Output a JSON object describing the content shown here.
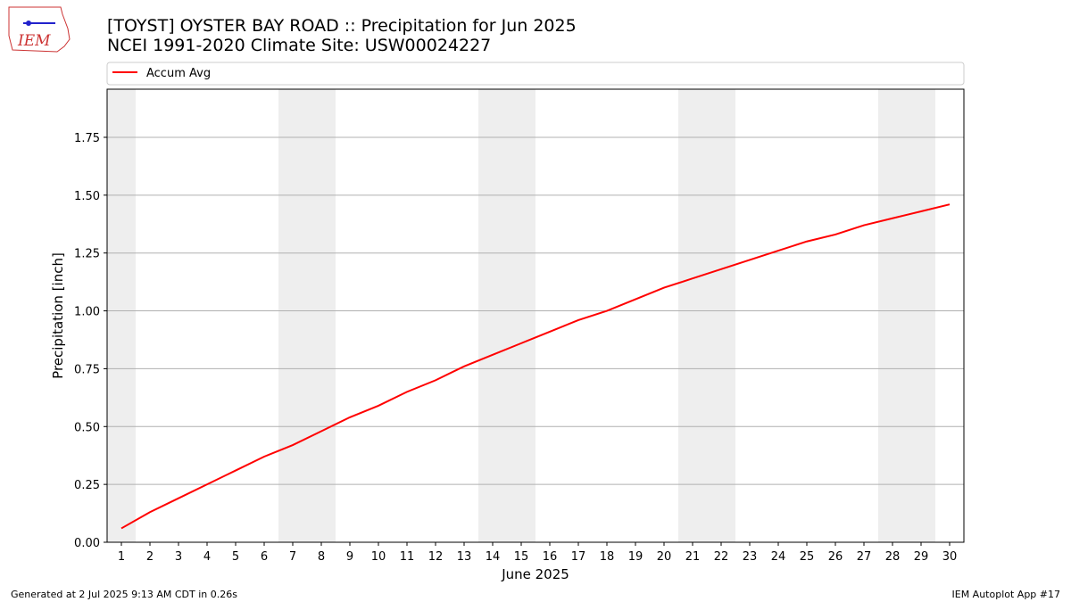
{
  "logo": "IEM",
  "footer": {
    "left": "Generated at 2 Jul 2025 9:13 AM CDT in 0.26s",
    "right": "IEM Autoplot App #17"
  },
  "chart_data": {
    "type": "line",
    "title": "[TOYST] OYSTER BAY ROAD  :: Precipitation for Jun 2025",
    "subtitle": "NCEI 1991-2020 Climate Site: USW00024227",
    "x_label": "June 2025",
    "y_label": "Precipitation [inch]",
    "x": [
      1,
      2,
      3,
      4,
      5,
      6,
      7,
      8,
      9,
      10,
      11,
      12,
      13,
      14,
      15,
      16,
      17,
      18,
      19,
      20,
      21,
      22,
      23,
      24,
      25,
      26,
      27,
      28,
      29,
      30
    ],
    "series": [
      {
        "name": "Accum Avg",
        "color": "#ff0000",
        "values": [
          0.06,
          0.13,
          0.19,
          0.25,
          0.31,
          0.37,
          0.42,
          0.48,
          0.54,
          0.59,
          0.65,
          0.7,
          0.76,
          0.81,
          0.86,
          0.91,
          0.96,
          1.0,
          1.05,
          1.1,
          1.14,
          1.18,
          1.22,
          1.26,
          1.3,
          1.33,
          1.37,
          1.4,
          1.43,
          1.46
        ]
      }
    ],
    "xlim": [
      0.5,
      30.5
    ],
    "xticks": [
      1,
      2,
      3,
      4,
      5,
      6,
      7,
      8,
      9,
      10,
      11,
      12,
      13,
      14,
      15,
      16,
      17,
      18,
      19,
      20,
      21,
      22,
      23,
      24,
      25,
      26,
      27,
      28,
      29,
      30
    ],
    "ylim": [
      0,
      1.958
    ],
    "yticks": [
      {
        "value": 0,
        "label": "0.00"
      },
      {
        "value": 0.25,
        "label": "0.25"
      },
      {
        "value": 0.5,
        "label": "0.50"
      },
      {
        "value": 0.75,
        "label": "0.75"
      },
      {
        "value": 1,
        "label": "1.00"
      },
      {
        "value": 1.25,
        "label": "1.25"
      },
      {
        "value": 1.5,
        "label": "1.50"
      },
      {
        "value": 1.75,
        "label": "1.75"
      }
    ],
    "grid": "y",
    "shaded_x": [
      1,
      7,
      8,
      14,
      15,
      21,
      22,
      28,
      29
    ],
    "legend": "top"
  }
}
